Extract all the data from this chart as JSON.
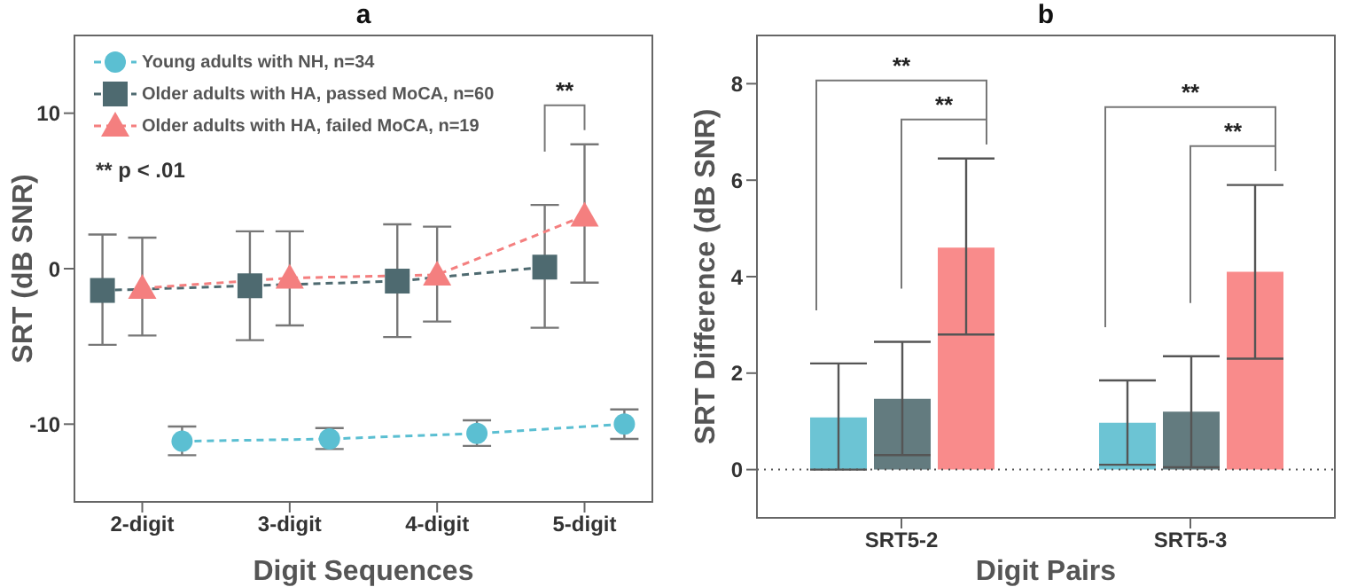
{
  "chart_data": [
    {
      "type": "line",
      "title": "a",
      "xlabel": "Digit Sequences",
      "ylabel": "SRT (dB SNR)",
      "categories": [
        "2-digit",
        "3-digit",
        "4-digit",
        "5-digit"
      ],
      "series": [
        {
          "name": "Young adults with NH, n=34",
          "color": "#5bbfd2",
          "marker": "circle",
          "values": [
            -11.1,
            -10.95,
            -10.6,
            -10.0
          ],
          "errors": [
            [
              -12.0,
              -10.15
            ],
            [
              -11.6,
              -10.25
            ],
            [
              -11.4,
              -9.75
            ],
            [
              -10.95,
              -9.05
            ]
          ]
        },
        {
          "name": "Older adults with HA, passed MoCA, n=60",
          "color": "#4e6a70",
          "marker": "square",
          "values": [
            -1.4,
            -1.1,
            -0.8,
            0.1
          ],
          "errors": [
            [
              -4.9,
              2.2
            ],
            [
              -4.6,
              2.4
            ],
            [
              -4.4,
              2.85
            ],
            [
              -3.8,
              4.1
            ]
          ]
        },
        {
          "name": "Older adults with HA, failed MoCA, n=19",
          "color": "#f47f7f",
          "marker": "triangle",
          "values": [
            -1.25,
            -0.6,
            -0.4,
            3.4
          ],
          "errors": [
            [
              -4.3,
              2.0
            ],
            [
              -3.65,
              2.4
            ],
            [
              -3.4,
              2.7
            ],
            [
              -0.9,
              8.0
            ]
          ]
        }
      ],
      "line_style": "dashed",
      "legend": "top left",
      "ylim": [
        -15,
        15
      ],
      "yticks": [
        -10,
        0,
        10
      ],
      "annotations": [
        "**",
        "** p < .01"
      ]
    },
    {
      "type": "bar",
      "title": "b",
      "xlabel": "Digit Pairs",
      "ylabel": "SRT Difference (dB SNR)",
      "categories": [
        "SRT5-2",
        "SRT5-3"
      ],
      "series": [
        {
          "color": "#6cc4d4",
          "values": [
            1.08,
            0.97
          ],
          "errors": [
            [
              0,
              2.2
            ],
            [
              0.1,
              1.85
            ]
          ]
        },
        {
          "color": "#637b7f",
          "values": [
            1.47,
            1.2
          ],
          "errors": [
            [
              0.3,
              2.65
            ],
            [
              0.05,
              2.35
            ]
          ]
        },
        {
          "color": "#f98b8b",
          "values": [
            4.6,
            4.1
          ],
          "errors": [
            [
              2.8,
              6.45
            ],
            [
              2.3,
              5.9
            ]
          ]
        }
      ],
      "ylim": [
        -1,
        9
      ],
      "yticks": [
        0,
        2,
        4,
        6,
        8
      ],
      "ref_lines": [
        {
          "axis": "y",
          "value": 0,
          "color": "#555555",
          "line_style": "dotted"
        }
      ],
      "annotations": [
        "**",
        "**",
        "**",
        "**"
      ]
    }
  ]
}
